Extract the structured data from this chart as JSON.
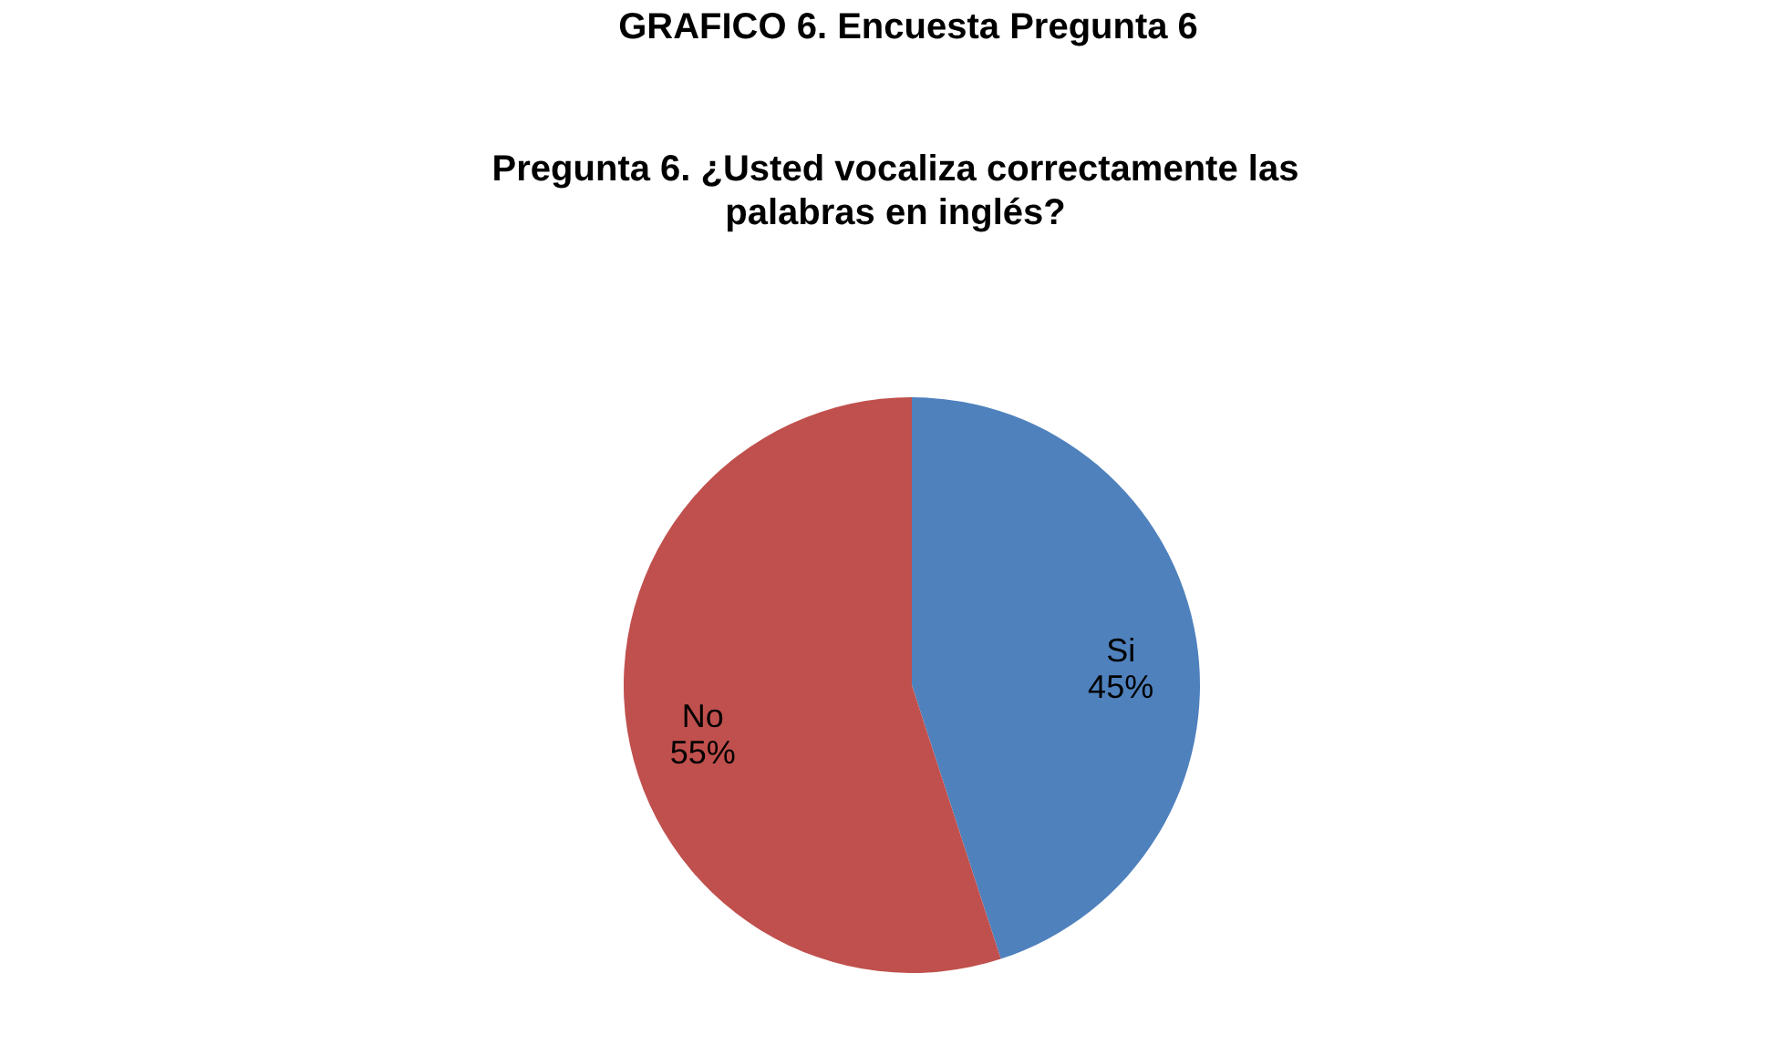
{
  "chart_data": {
    "type": "pie",
    "title": "Pregunta 6. ¿Usted vocaliza correctamente las palabras en inglés?",
    "annotations": [
      "GRAFICO 6. Encuesta Pregunta 6"
    ],
    "categories": [
      "Si",
      "No"
    ],
    "values": [
      45,
      55
    ],
    "colors": [
      "#4f81bd",
      "#c0504d"
    ],
    "value_labels": [
      "45%",
      "55%"
    ]
  }
}
